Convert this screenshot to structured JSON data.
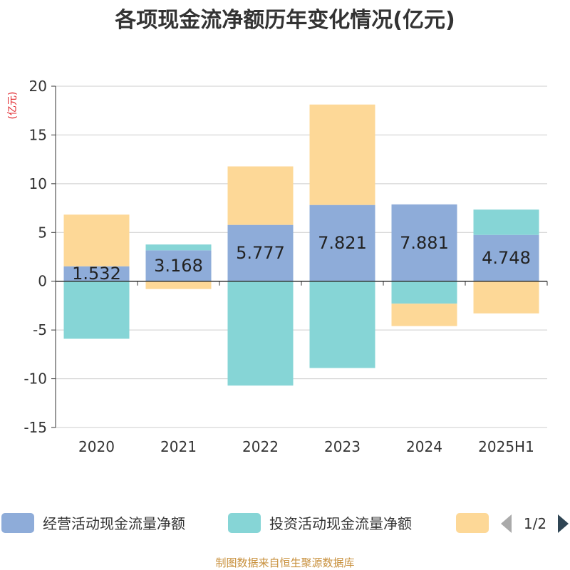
{
  "chart_data": {
    "type": "bar",
    "stacked": true,
    "title": "各项现金流净额历年变化情况(亿元)",
    "unit_label": "(亿元)",
    "categories": [
      "2020",
      "2021",
      "2022",
      "2023",
      "2024",
      "2025H1"
    ],
    "ylim": [
      -15,
      20
    ],
    "yticks": [
      20,
      15,
      10,
      5,
      0,
      -5,
      -10,
      -15
    ],
    "grid": true,
    "legend_position": "bottom",
    "series": [
      {
        "name": "经营活动现金流量净额",
        "color": "#8eacd9",
        "values": [
          1.532,
          3.168,
          5.777,
          7.821,
          7.881,
          4.748
        ],
        "labels": [
          "1.532",
          "3.168",
          "5.777",
          "7.821",
          "7.881",
          "4.748"
        ]
      },
      {
        "name": "投资活动现金流量净额",
        "color": "#86d5d6",
        "values": [
          -5.9,
          0.6,
          -10.7,
          -8.9,
          -2.3,
          2.6
        ]
      },
      {
        "name": "",
        "color": "#fdd897",
        "values": [
          5.3,
          -0.8,
          6.0,
          10.3,
          -2.3,
          -3.3
        ]
      }
    ]
  },
  "legend": {
    "pager": "1/2"
  },
  "source": "制图数据来自恒生聚源数据库"
}
